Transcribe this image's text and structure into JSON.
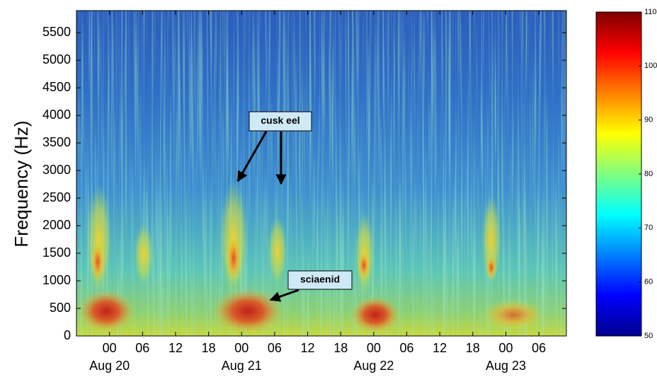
{
  "chart_data": {
    "type": "spectrogram",
    "y_label": "Frequency (Hz)",
    "xlim": [
      -6,
      83
    ],
    "xticks": [
      {
        "value": 0,
        "label": "00"
      },
      {
        "value": 6,
        "label": "06"
      },
      {
        "value": 12,
        "label": "12"
      },
      {
        "value": 18,
        "label": "18"
      },
      {
        "value": 24,
        "label": "00"
      },
      {
        "value": 30,
        "label": "06"
      },
      {
        "value": 36,
        "label": "12"
      },
      {
        "value": 42,
        "label": "18"
      },
      {
        "value": 48,
        "label": "00"
      },
      {
        "value": 54,
        "label": "06"
      },
      {
        "value": 60,
        "label": "12"
      },
      {
        "value": 66,
        "label": "18"
      },
      {
        "value": 72,
        "label": "00"
      },
      {
        "value": 78,
        "label": "06"
      }
    ],
    "date_labels": [
      {
        "value": 0,
        "label": "Aug 20"
      },
      {
        "value": 24,
        "label": "Aug 21"
      },
      {
        "value": 48,
        "label": "Aug 22"
      },
      {
        "value": 72,
        "label": "Aug 23"
      }
    ],
    "ylim": [
      0,
      5900
    ],
    "yticks": [
      0,
      500,
      1000,
      1500,
      2000,
      2500,
      3000,
      3500,
      4000,
      4500,
      5000,
      5500
    ],
    "colorbar": {
      "lim": [
        50,
        110
      ],
      "ticks": [
        50,
        60,
        70,
        80,
        90,
        100,
        110
      ],
      "colormap": "jet"
    },
    "annotations": [
      {
        "text": "cusk eel"
      },
      {
        "text": "sciaenid"
      }
    ]
  }
}
